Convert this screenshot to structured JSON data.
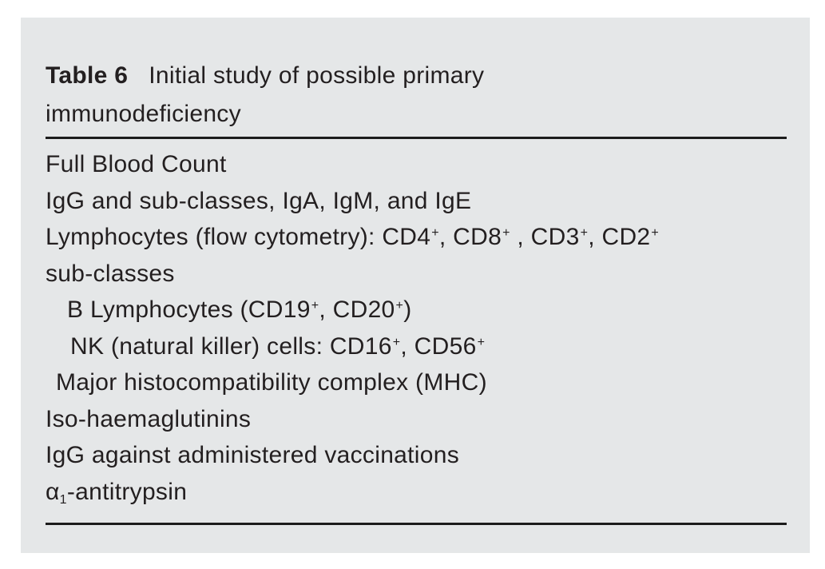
{
  "caption": {
    "label": "Table 6",
    "title": "Initial study of possible primary immunodeficiency",
    "title_lines": [
      "Initial study of possible primary",
      "immunodeficiency"
    ]
  },
  "table": {
    "rows": [
      {
        "indent": 0,
        "segments": [
          {
            "t": "Full Blood Count"
          }
        ]
      },
      {
        "indent": 0,
        "segments": [
          {
            "t": "IgG and sub-classes, IgA, IgM, and IgE"
          }
        ]
      },
      {
        "indent": 0,
        "segments": [
          {
            "t": "Lymphocytes (flow cytometry): CD4"
          },
          {
            "t": "+",
            "style": "sup"
          },
          {
            "t": ", CD8"
          },
          {
            "t": "+",
            "style": "sup"
          },
          {
            "t": " , CD3"
          },
          {
            "t": "+",
            "style": "sup"
          },
          {
            "t": ", CD2"
          },
          {
            "t": "+",
            "style": "sup"
          }
        ]
      },
      {
        "indent": 0,
        "segments": [
          {
            "t": "sub-classes"
          }
        ]
      },
      {
        "indent": 2,
        "segments": [
          {
            "t": "B Lymphocytes (CD19"
          },
          {
            "t": "+",
            "style": "sup"
          },
          {
            "t": ", CD20"
          },
          {
            "t": "+",
            "style": "sup"
          },
          {
            "t": ")"
          }
        ]
      },
      {
        "indent": 3,
        "segments": [
          {
            "t": "NK (natural killer) cells: CD16"
          },
          {
            "t": "+",
            "style": "sup"
          },
          {
            "t": ", CD56"
          },
          {
            "t": "+",
            "style": "sup"
          }
        ]
      },
      {
        "indent": 1,
        "segments": [
          {
            "t": "Major histocompatibility complex (MHC)"
          }
        ]
      },
      {
        "indent": 0,
        "segments": [
          {
            "t": "Iso-haemaglutinins"
          }
        ]
      },
      {
        "indent": 0,
        "segments": [
          {
            "t": "IgG against administered vaccinations"
          }
        ]
      },
      {
        "indent": 0,
        "segments": [
          {
            "t": "α"
          },
          {
            "t": "1",
            "style": "sub"
          },
          {
            "t": "-antitrypsin"
          }
        ]
      }
    ]
  },
  "colors": {
    "panel_background": "#e5e7e8",
    "rule": "#1c1c1c",
    "text": "#231f20",
    "page_background": "#ffffff"
  }
}
